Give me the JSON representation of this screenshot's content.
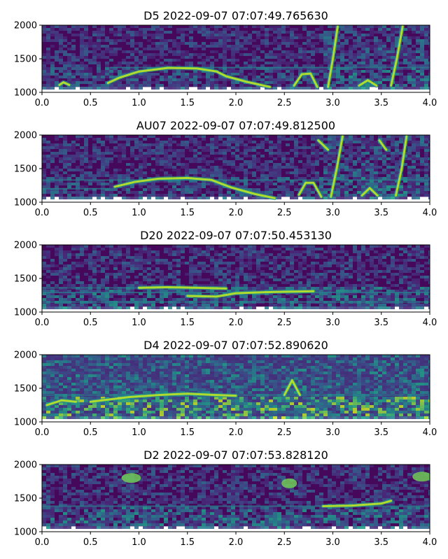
{
  "chart_data": [
    {
      "type": "heatmap",
      "title": "D5 2022-09-07 07:07:49.765630",
      "xlim": [
        0,
        4
      ],
      "ylim": [
        1000,
        2000
      ],
      "xticks": [
        "0.0",
        "0.5",
        "1.0",
        "1.5",
        "2.0",
        "2.5",
        "3.0",
        "3.5",
        "4.0"
      ],
      "yticks": [
        "1000",
        "1500",
        "2000"
      ],
      "intensity": "high",
      "contours": [
        {
          "x": [
            0.18,
            0.22,
            0.28
          ],
          "y": [
            1110,
            1150,
            1110
          ]
        },
        {
          "x": [
            0.68,
            0.8,
            1.0,
            1.3,
            1.6,
            1.8,
            1.9,
            2.1,
            2.35
          ],
          "y": [
            1140,
            1220,
            1310,
            1365,
            1355,
            1310,
            1240,
            1160,
            1080
          ]
        },
        {
          "x": [
            2.6,
            2.68,
            2.77,
            2.84
          ],
          "y": [
            1100,
            1270,
            1280,
            1080
          ]
        },
        {
          "x": [
            3.27,
            3.36,
            3.45
          ],
          "y": [
            1100,
            1180,
            1100
          ]
        },
        {
          "x": [
            2.95,
            3.0,
            3.05
          ],
          "y": [
            1080,
            1500,
            1980
          ]
        },
        {
          "x": [
            3.6,
            3.66,
            3.72
          ],
          "y": [
            1100,
            1500,
            1980
          ]
        }
      ],
      "lines": [
        {
          "y": 1370,
          "x": [
            0.7,
            4.0
          ]
        }
      ]
    },
    {
      "type": "heatmap",
      "title": "AU07 2022-09-07 07:07:49.812500",
      "xlim": [
        0,
        4
      ],
      "ylim": [
        1000,
        2000
      ],
      "xticks": [
        "0.0",
        "0.5",
        "1.0",
        "1.5",
        "2.0",
        "2.5",
        "3.0",
        "3.5",
        "4.0"
      ],
      "yticks": [
        "1000",
        "1500",
        "2000"
      ],
      "intensity": "high",
      "contours": [
        {
          "x": [
            0.75,
            0.95,
            1.2,
            1.5,
            1.75,
            1.95,
            2.2,
            2.4
          ],
          "y": [
            1230,
            1300,
            1350,
            1360,
            1330,
            1220,
            1120,
            1060
          ]
        },
        {
          "x": [
            2.65,
            2.72,
            2.8,
            2.88
          ],
          "y": [
            1110,
            1290,
            1290,
            1080
          ]
        },
        {
          "x": [
            3.3,
            3.38,
            3.46
          ],
          "y": [
            1100,
            1210,
            1100
          ]
        },
        {
          "x": [
            2.98,
            3.04,
            3.1
          ],
          "y": [
            1080,
            1500,
            1980
          ]
        },
        {
          "x": [
            3.65,
            3.71,
            3.76
          ],
          "y": [
            1100,
            1500,
            1980
          ]
        },
        {
          "x": [
            2.85,
            2.95
          ],
          "y": [
            1920,
            1780
          ]
        },
        {
          "x": [
            3.48,
            3.55
          ],
          "y": [
            1920,
            1780
          ]
        }
      ],
      "lines": [
        {
          "y": 1330,
          "x": [
            0.0,
            4.0
          ]
        },
        {
          "y": 1200,
          "x": [
            0.0,
            0.7
          ]
        }
      ]
    },
    {
      "type": "heatmap",
      "title": "D20 2022-09-07 07:07:50.453130",
      "xlim": [
        0,
        4
      ],
      "ylim": [
        1000,
        2000
      ],
      "xticks": [
        "0.0",
        "0.5",
        "1.0",
        "1.5",
        "2.0",
        "2.5",
        "3.0",
        "3.5",
        "4.0"
      ],
      "yticks": [
        "1000",
        "1500",
        "2000"
      ],
      "intensity": "medium",
      "contours": [
        {
          "x": [
            1.0,
            1.3,
            1.6,
            1.9
          ],
          "y": [
            1360,
            1370,
            1360,
            1350
          ]
        },
        {
          "x": [
            1.5,
            1.8,
            2.0,
            2.4,
            2.8
          ],
          "y": [
            1240,
            1230,
            1280,
            1300,
            1310
          ]
        }
      ],
      "lines": [
        {
          "y": 1360,
          "x": [
            0.0,
            1.9
          ]
        },
        {
          "y": 1290,
          "x": [
            0.0,
            4.0
          ]
        },
        {
          "y": 1150,
          "x": [
            0.0,
            4.0
          ]
        }
      ]
    },
    {
      "type": "heatmap",
      "title": "D4 2022-09-07 07:07:52.890620",
      "xlim": [
        0,
        4
      ],
      "ylim": [
        1000,
        2000
      ],
      "xticks": [
        "0.0",
        "0.5",
        "1.0",
        "1.5",
        "2.0",
        "2.5",
        "3.0",
        "3.5",
        "4.0"
      ],
      "yticks": [
        "1000",
        "1500",
        "2000"
      ],
      "intensity": "noisy",
      "contours": [
        {
          "x": [
            0.5,
            0.9,
            1.2,
            1.5,
            1.8,
            2.0
          ],
          "y": [
            1300,
            1370,
            1400,
            1420,
            1400,
            1390
          ]
        },
        {
          "x": [
            2.5,
            2.58,
            2.66
          ],
          "y": [
            1400,
            1620,
            1400
          ]
        },
        {
          "x": [
            0.05,
            0.2,
            0.35
          ],
          "y": [
            1250,
            1320,
            1300
          ]
        }
      ],
      "lines": [
        {
          "y": 1400,
          "x": [
            0.0,
            4.0
          ]
        }
      ]
    },
    {
      "type": "heatmap",
      "title": "D2 2022-09-07 07:07:53.828120",
      "xlim": [
        0,
        4
      ],
      "ylim": [
        1000,
        2000
      ],
      "xticks": [
        "0.0",
        "0.5",
        "1.0",
        "1.5",
        "2.0",
        "2.5",
        "3.0",
        "3.5",
        "4.0"
      ],
      "yticks": [
        "1000",
        "1500",
        "2000"
      ],
      "intensity": "low",
      "contours": [
        {
          "x": [
            2.9,
            3.2,
            3.5,
            3.6
          ],
          "y": [
            1380,
            1390,
            1420,
            1460
          ]
        }
      ],
      "blobs": [
        {
          "x": 0.92,
          "y": 1800,
          "r": 0.1
        },
        {
          "x": 2.55,
          "y": 1720,
          "r": 0.08
        },
        {
          "x": 3.92,
          "y": 1820,
          "r": 0.1
        }
      ],
      "lines": [
        {
          "y": 1380,
          "x": [
            0.0,
            4.0
          ]
        }
      ]
    }
  ]
}
